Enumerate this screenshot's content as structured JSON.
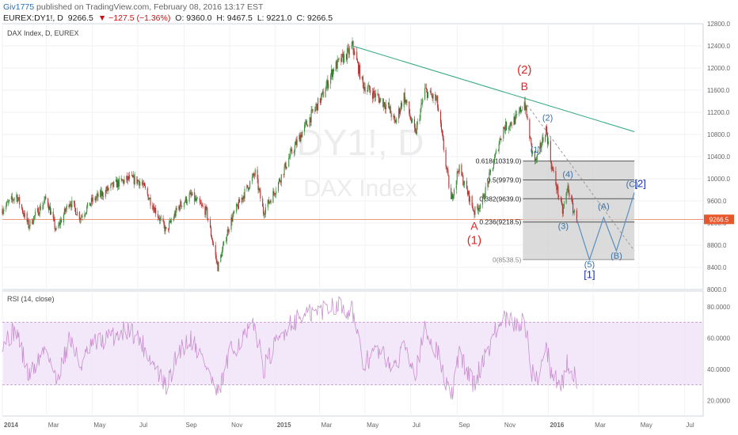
{
  "header": {
    "author": "Giv1775",
    "published": "published on TradingView.com, February 08, 2016 13:17 EST",
    "symbol": "EUREX:DY1!, D",
    "last": "9266.5",
    "change": "▼ −127.5 (−1.36%)",
    "open": "O: 9360.0",
    "high": "H: 9467.5",
    "low": "L: 9221.0",
    "close": "C: 9266.5"
  },
  "price_pane": {
    "title": "DAX Index, D, EUREX",
    "watermark_symbol": "DY1!, D",
    "watermark_name": "DAX Index",
    "last_price_label": "9266.5",
    "colors": {
      "up": "#3a8a3a",
      "down": "#b23030",
      "trendline": "#2fa77a",
      "wave": "#5b8fc0",
      "box": "#c8c8c8",
      "last_price": "#e8572b"
    }
  },
  "rsi_pane": {
    "title": "RSI (14, close)",
    "band_upper": 70,
    "band_lower": 30,
    "line_color": "#c98fcf",
    "band_color": "#efe0f7"
  },
  "chart_data": [
    {
      "type": "candlestick",
      "title": "DAX Index, D, EUREX",
      "ylim": [
        8000,
        12800
      ],
      "y_ticks": [
        "12800.0",
        "12400.0",
        "12000.0",
        "11600.0",
        "11200.0",
        "10800.0",
        "10400.0",
        "10000.0",
        "9600.0",
        "9200.0",
        "8800.0",
        "8400.0",
        "8000.0"
      ],
      "x_ticks": [
        "2014",
        "Mar",
        "May",
        "Jul",
        "Sep",
        "Nov",
        "2015",
        "Mar",
        "May",
        "Jul",
        "Sep",
        "Nov",
        "2016",
        "Mar",
        "May",
        "Jul"
      ],
      "price_path": [
        [
          "2014-01-01",
          9450
        ],
        [
          "2014-01-20",
          9700
        ],
        [
          "2014-02-05",
          9150
        ],
        [
          "2014-03-01",
          9650
        ],
        [
          "2014-03-14",
          9050
        ],
        [
          "2014-04-01",
          9600
        ],
        [
          "2014-04-15",
          9300
        ],
        [
          "2014-05-01",
          9600
        ],
        [
          "2014-06-01",
          9900
        ],
        [
          "2014-06-20",
          10000
        ],
        [
          "2014-07-05",
          9950
        ],
        [
          "2014-08-08",
          9050
        ],
        [
          "2014-08-25",
          9500
        ],
        [
          "2014-09-10",
          9700
        ],
        [
          "2014-10-01",
          9400
        ],
        [
          "2014-10-16",
          8400
        ],
        [
          "2014-11-01",
          9200
        ],
        [
          "2014-11-15",
          9600
        ],
        [
          "2014-12-05",
          10100
        ],
        [
          "2014-12-16",
          9400
        ],
        [
          "2015-01-01",
          9800
        ],
        [
          "2015-01-20",
          10400
        ],
        [
          "2015-02-10",
          10950
        ],
        [
          "2015-03-05",
          11500
        ],
        [
          "2015-03-20",
          12000
        ],
        [
          "2015-04-10",
          12300
        ],
        [
          "2015-04-14",
          12400
        ],
        [
          "2015-04-28",
          11700
        ],
        [
          "2015-05-15",
          11500
        ],
        [
          "2015-06-01",
          11300
        ],
        [
          "2015-06-10",
          11000
        ],
        [
          "2015-06-22",
          11500
        ],
        [
          "2015-07-07",
          10800
        ],
        [
          "2015-07-20",
          11600
        ],
        [
          "2015-08-05",
          11400
        ],
        [
          "2015-08-24",
          9600
        ],
        [
          "2015-09-03",
          10200
        ],
        [
          "2015-09-24",
          9400
        ],
        [
          "2015-10-05",
          9600
        ],
        [
          "2015-10-20",
          10300
        ],
        [
          "2015-11-01",
          10900
        ],
        [
          "2015-11-20",
          11100
        ],
        [
          "2015-11-30",
          11400
        ],
        [
          "2015-12-10",
          10500
        ],
        [
          "2015-12-15",
          10300
        ],
        [
          "2015-12-29",
          10900
        ],
        [
          "2016-01-05",
          10250
        ],
        [
          "2016-01-20",
          9400
        ],
        [
          "2016-01-27",
          9850
        ],
        [
          "2016-02-03",
          9450
        ],
        [
          "2016-02-08",
          9266.5
        ]
      ],
      "trendline": [
        [
          "2015-04-14",
          12400
        ],
        [
          "2016-04-25",
          10850
        ]
      ],
      "fibonacci": {
        "levels": [
          {
            "ratio": "0.618",
            "price": "10319.0",
            "label": "0.618(10319.0)"
          },
          {
            "ratio": "0.5",
            "price": "9979.0",
            "label": "0.5(9979.0)"
          },
          {
            "ratio": "0.382",
            "price": "9639.0",
            "label": "0.382(9639.0)"
          },
          {
            "ratio": "0.236",
            "price": "9218.5",
            "label": "0.236(9218.5)"
          },
          {
            "ratio": "0",
            "price": "8538.5",
            "label": "0(8538.5)"
          }
        ],
        "start": "2015-11-28",
        "end": "2016-04-25"
      },
      "projection": [
        [
          "2016-02-08",
          9266.5
        ],
        [
          "2016-02-25",
          8538.5
        ],
        [
          "2016-03-15",
          9300
        ],
        [
          "2016-04-01",
          8700
        ],
        [
          "2016-04-25",
          9750
        ]
      ],
      "projection_dashed": [
        [
          "2015-11-30",
          11400
        ],
        [
          "2016-04-25",
          8700
        ]
      ],
      "wave_labels": [
        {
          "text": "(2)",
          "date": "2015-11-30",
          "price": 11900,
          "color": "red"
        },
        {
          "text": "B",
          "date": "2015-11-30",
          "price": 11600,
          "color": "red"
        },
        {
          "text": "A",
          "date": "2015-09-24",
          "price": 9080,
          "color": "red"
        },
        {
          "text": "(1)",
          "date": "2015-09-24",
          "price": 8820,
          "color": "red"
        },
        {
          "text": "(2)",
          "date": "2015-12-31",
          "price": 11050,
          "color": "blue"
        },
        {
          "text": "(1)",
          "date": "2015-12-15",
          "price": 10470,
          "color": "blue"
        },
        {
          "text": "(4)",
          "date": "2016-01-27",
          "price": 10030,
          "color": "blue"
        },
        {
          "text": "(3)",
          "date": "2016-01-21",
          "price": 9090,
          "color": "blue"
        },
        {
          "text": "(A)",
          "date": "2016-03-15",
          "price": 9450,
          "color": "blue"
        },
        {
          "text": "(B)",
          "date": "2016-04-01",
          "price": 8560,
          "color": "blue"
        },
        {
          "text": "(C)",
          "date": "2016-04-22",
          "price": 9850,
          "color": "blue"
        },
        {
          "text": "[2]",
          "date": "2016-05-03",
          "price": 9850,
          "color": "blue"
        },
        {
          "text": "(5)",
          "date": "2016-02-25",
          "price": 8400,
          "color": "blue"
        },
        {
          "text": "[1]",
          "date": "2016-02-25",
          "price": 8210,
          "color": "blue"
        }
      ]
    },
    {
      "type": "line",
      "title": "RSI (14, close)",
      "ylim": [
        10,
        90
      ],
      "y_ticks": [
        "80.0000",
        "60.0000",
        "40.0000",
        "20.0000"
      ],
      "rsi_path": [
        [
          "2014-01-01",
          58
        ],
        [
          "2014-01-20",
          65
        ],
        [
          "2014-02-05",
          35
        ],
        [
          "2014-03-01",
          55
        ],
        [
          "2014-03-14",
          32
        ],
        [
          "2014-04-01",
          60
        ],
        [
          "2014-04-15",
          42
        ],
        [
          "2014-05-01",
          55
        ],
        [
          "2014-06-01",
          62
        ],
        [
          "2014-06-20",
          66
        ],
        [
          "2014-07-05",
          58
        ],
        [
          "2014-08-08",
          28
        ],
        [
          "2014-08-25",
          52
        ],
        [
          "2014-09-10",
          60
        ],
        [
          "2014-10-01",
          42
        ],
        [
          "2014-10-16",
          22
        ],
        [
          "2014-11-01",
          50
        ],
        [
          "2014-11-15",
          58
        ],
        [
          "2014-12-05",
          68
        ],
        [
          "2014-12-16",
          40
        ],
        [
          "2015-01-01",
          55
        ],
        [
          "2015-01-20",
          70
        ],
        [
          "2015-02-10",
          74
        ],
        [
          "2015-03-05",
          78
        ],
        [
          "2015-03-20",
          82
        ],
        [
          "2015-04-10",
          78
        ],
        [
          "2015-04-14",
          79
        ],
        [
          "2015-04-28",
          42
        ],
        [
          "2015-05-15",
          52
        ],
        [
          "2015-06-01",
          46
        ],
        [
          "2015-06-10",
          38
        ],
        [
          "2015-06-22",
          60
        ],
        [
          "2015-07-07",
          38
        ],
        [
          "2015-07-20",
          64
        ],
        [
          "2015-08-05",
          52
        ],
        [
          "2015-08-24",
          20
        ],
        [
          "2015-09-03",
          50
        ],
        [
          "2015-09-24",
          30
        ],
        [
          "2015-10-05",
          45
        ],
        [
          "2015-10-20",
          62
        ],
        [
          "2015-11-01",
          72
        ],
        [
          "2015-11-20",
          68
        ],
        [
          "2015-11-30",
          72
        ],
        [
          "2015-12-10",
          38
        ],
        [
          "2015-12-15",
          32
        ],
        [
          "2015-12-29",
          55
        ],
        [
          "2016-01-05",
          38
        ],
        [
          "2016-01-20",
          30
        ],
        [
          "2016-01-27",
          45
        ],
        [
          "2016-02-03",
          38
        ],
        [
          "2016-02-08",
          34
        ]
      ]
    }
  ]
}
